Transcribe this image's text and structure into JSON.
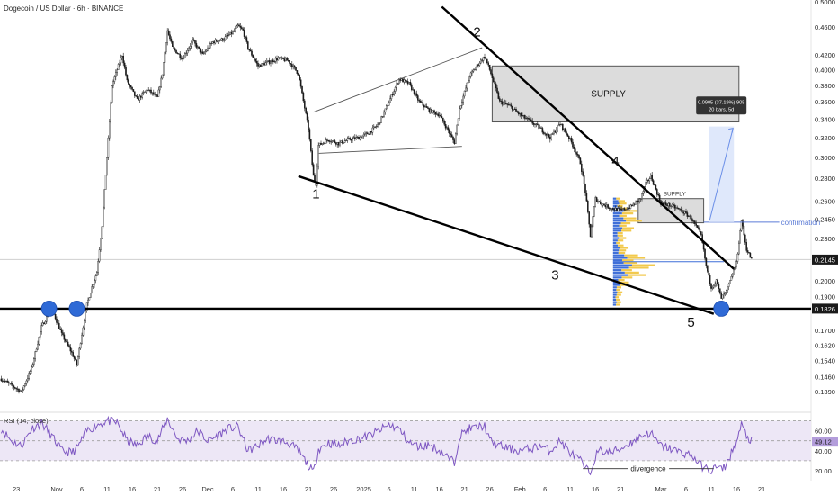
{
  "header": {
    "title": "Dogecoin / US Dollar · 6h · BINANCE"
  },
  "chart_data": {
    "type": "candlestick",
    "title": "Dogecoin / US Dollar · 6h · BINANCE",
    "y_scale": "log",
    "ylim": [
      0.1315,
      0.5
    ],
    "y_ticks": [
      "0.5000",
      "0.4600",
      "0.4200",
      "0.4000",
      "0.3800",
      "0.3600",
      "0.3400",
      "0.3200",
      "0.3000",
      "0.2800",
      "0.2600",
      "0.2450",
      "0.2300",
      "0.2145",
      "0.2000",
      "0.1900",
      "0.1826",
      "0.1700",
      "0.1620",
      "0.1540",
      "0.1460",
      "0.1390"
    ],
    "y_tick_values": [
      0.5,
      0.46,
      0.42,
      0.4,
      0.38,
      0.36,
      0.34,
      0.32,
      0.3,
      0.28,
      0.26,
      0.245,
      0.23,
      0.2145,
      0.2,
      0.19,
      0.1826,
      0.17,
      0.162,
      0.154,
      0.146,
      0.139
    ],
    "x_ticks": [
      "23",
      "Nov",
      "6",
      "11",
      "16",
      "21",
      "26",
      "Dec",
      "6",
      "11",
      "16",
      "21",
      "26",
      "2025",
      "6",
      "11",
      "16",
      "21",
      "26",
      "Feb",
      "6",
      "11",
      "16",
      "21",
      "Mar",
      "6",
      "11",
      "16",
      "21"
    ],
    "x_tick_days": [
      -8,
      0,
      5,
      10,
      15,
      20,
      25,
      30,
      35,
      40,
      45,
      50,
      55,
      61,
      66,
      71,
      76,
      81,
      86,
      92,
      97,
      102,
      107,
      112,
      120,
      125,
      130,
      135,
      140
    ],
    "price_path": [
      [
        -11,
        0.145
      ],
      [
        -9,
        0.142
      ],
      [
        -7,
        0.139
      ],
      [
        -5,
        0.15
      ],
      [
        -3,
        0.172
      ],
      [
        -1,
        0.183
      ],
      [
        1,
        0.168
      ],
      [
        3,
        0.158
      ],
      [
        4,
        0.152
      ],
      [
        5,
        0.168
      ],
      [
        6,
        0.185
      ],
      [
        7,
        0.196
      ],
      [
        8,
        0.206
      ],
      [
        9,
        0.24
      ],
      [
        10,
        0.3
      ],
      [
        11,
        0.38
      ],
      [
        12,
        0.4
      ],
      [
        13,
        0.42
      ],
      [
        14,
        0.385
      ],
      [
        16,
        0.362
      ],
      [
        18,
        0.375
      ],
      [
        20,
        0.365
      ],
      [
        21,
        0.395
      ],
      [
        22,
        0.455
      ],
      [
        23,
        0.43
      ],
      [
        25,
        0.415
      ],
      [
        27,
        0.44
      ],
      [
        29,
        0.42
      ],
      [
        31,
        0.438
      ],
      [
        33,
        0.442
      ],
      [
        35,
        0.452
      ],
      [
        36,
        0.462
      ],
      [
        37,
        0.455
      ],
      [
        38,
        0.43
      ],
      [
        40,
        0.405
      ],
      [
        42,
        0.41
      ],
      [
        44,
        0.415
      ],
      [
        46,
        0.412
      ],
      [
        48,
        0.395
      ],
      [
        50,
        0.33
      ],
      [
        51,
        0.282
      ],
      [
        51.5,
        0.275
      ],
      [
        52,
        0.312
      ],
      [
        54,
        0.318
      ],
      [
        56,
        0.314
      ],
      [
        58,
        0.318
      ],
      [
        60,
        0.32
      ],
      [
        62,
        0.325
      ],
      [
        64,
        0.335
      ],
      [
        66,
        0.36
      ],
      [
        68,
        0.388
      ],
      [
        70,
        0.382
      ],
      [
        72,
        0.36
      ],
      [
        74,
        0.35
      ],
      [
        76,
        0.345
      ],
      [
        78,
        0.325
      ],
      [
        79,
        0.315
      ],
      [
        80,
        0.352
      ],
      [
        82,
        0.392
      ],
      [
        84,
        0.41
      ],
      [
        85,
        0.418
      ],
      [
        86,
        0.4
      ],
      [
        87,
        0.38
      ],
      [
        88,
        0.36
      ],
      [
        90,
        0.355
      ],
      [
        92,
        0.345
      ],
      [
        94,
        0.338
      ],
      [
        96,
        0.33
      ],
      [
        98,
        0.32
      ],
      [
        100,
        0.335
      ],
      [
        102,
        0.318
      ],
      [
        104,
        0.295
      ],
      [
        105,
        0.268
      ],
      [
        106,
        0.232
      ],
      [
        107,
        0.262
      ],
      [
        108,
        0.258
      ],
      [
        110,
        0.254
      ],
      [
        112,
        0.252
      ],
      [
        114,
        0.255
      ],
      [
        116,
        0.262
      ],
      [
        117,
        0.275
      ],
      [
        118,
        0.282
      ],
      [
        119,
        0.27
      ],
      [
        120,
        0.258
      ],
      [
        122,
        0.256
      ],
      [
        124,
        0.252
      ],
      [
        126,
        0.246
      ],
      [
        128,
        0.232
      ],
      [
        129,
        0.21
      ],
      [
        130,
        0.196
      ],
      [
        131,
        0.2
      ],
      [
        132,
        0.189
      ],
      [
        133,
        0.193
      ],
      [
        134,
        0.202
      ],
      [
        135,
        0.212
      ],
      [
        136,
        0.244
      ],
      [
        137,
        0.222
      ],
      [
        138,
        0.2145
      ]
    ],
    "current_price": 0.2145,
    "horizontal_level": 0.1826,
    "wedge_points": {
      "1": "1",
      "2": "2",
      "3": "3",
      "4": "4",
      "5": "5"
    },
    "annotations": {
      "supply_main": "SUPPLY",
      "supply_small": "SUPPLY",
      "confirmation": "confirmation",
      "measure_line1": "0.0905 (37.19%) 905",
      "measure_line2": "20 bars, 5d",
      "divergence": "divergence"
    },
    "rsi": {
      "label": "RSI (14, close)",
      "current": "49.12",
      "ticks": [
        "60.00",
        "40.00",
        "20.00"
      ],
      "tick_values": [
        60,
        40,
        20
      ],
      "ylim": [
        10,
        75
      ],
      "band": [
        30,
        70
      ],
      "values": [
        [
          -11,
          62
        ],
        [
          -9,
          50
        ],
        [
          -7,
          45
        ],
        [
          -5,
          62
        ],
        [
          -3,
          68
        ],
        [
          -1,
          55
        ],
        [
          1,
          40
        ],
        [
          3,
          38
        ],
        [
          4,
          42
        ],
        [
          6,
          60
        ],
        [
          8,
          66
        ],
        [
          10,
          70
        ],
        [
          12,
          68
        ],
        [
          14,
          50
        ],
        [
          16,
          45
        ],
        [
          18,
          55
        ],
        [
          20,
          50
        ],
        [
          22,
          72
        ],
        [
          24,
          52
        ],
        [
          26,
          50
        ],
        [
          28,
          60
        ],
        [
          30,
          50
        ],
        [
          32,
          55
        ],
        [
          34,
          62
        ],
        [
          36,
          64
        ],
        [
          38,
          40
        ],
        [
          40,
          45
        ],
        [
          42,
          52
        ],
        [
          44,
          50
        ],
        [
          46,
          48
        ],
        [
          48,
          40
        ],
        [
          50,
          25
        ],
        [
          51,
          18
        ],
        [
          52,
          42
        ],
        [
          54,
          48
        ],
        [
          56,
          45
        ],
        [
          58,
          50
        ],
        [
          60,
          52
        ],
        [
          62,
          55
        ],
        [
          64,
          60
        ],
        [
          66,
          66
        ],
        [
          68,
          62
        ],
        [
          70,
          48
        ],
        [
          72,
          44
        ],
        [
          74,
          46
        ],
        [
          76,
          40
        ],
        [
          78,
          32
        ],
        [
          79,
          28
        ],
        [
          80,
          55
        ],
        [
          82,
          62
        ],
        [
          84,
          64
        ],
        [
          85,
          65
        ],
        [
          86,
          50
        ],
        [
          88,
          45
        ],
        [
          90,
          42
        ],
        [
          92,
          40
        ],
        [
          94,
          42
        ],
        [
          96,
          45
        ],
        [
          98,
          40
        ],
        [
          100,
          50
        ],
        [
          102,
          38
        ],
        [
          104,
          30
        ],
        [
          105,
          22
        ],
        [
          106,
          18
        ],
        [
          107,
          35
        ],
        [
          108,
          40
        ],
        [
          110,
          38
        ],
        [
          112,
          42
        ],
        [
          114,
          48
        ],
        [
          116,
          55
        ],
        [
          118,
          58
        ],
        [
          119,
          50
        ],
        [
          120,
          45
        ],
        [
          122,
          42
        ],
        [
          124,
          38
        ],
        [
          126,
          36
        ],
        [
          128,
          25
        ],
        [
          129,
          22
        ],
        [
          130,
          20
        ],
        [
          131,
          24
        ],
        [
          132,
          21
        ],
        [
          133,
          26
        ],
        [
          134,
          38
        ],
        [
          135,
          48
        ],
        [
          136,
          66
        ],
        [
          137,
          55
        ],
        [
          138,
          49
        ]
      ]
    },
    "colors": {
      "candle_up": "#1a1a1a",
      "candle_down": "#1a1a1a",
      "trendline": "#000000",
      "supply_fill": "#dcdcdc",
      "circle": "#2f6ad6",
      "rsi_line": "#7e57c2",
      "rsi_band": "#ede7f6",
      "measure": "#4b79e8",
      "confirmation_line": "#5b7bd6",
      "price_label_bg": "#1a1a1a",
      "volume_profile_blue": "#3f6fd8",
      "volume_profile_yellow": "#f2c94c"
    },
    "grid": false,
    "legend": "none"
  }
}
